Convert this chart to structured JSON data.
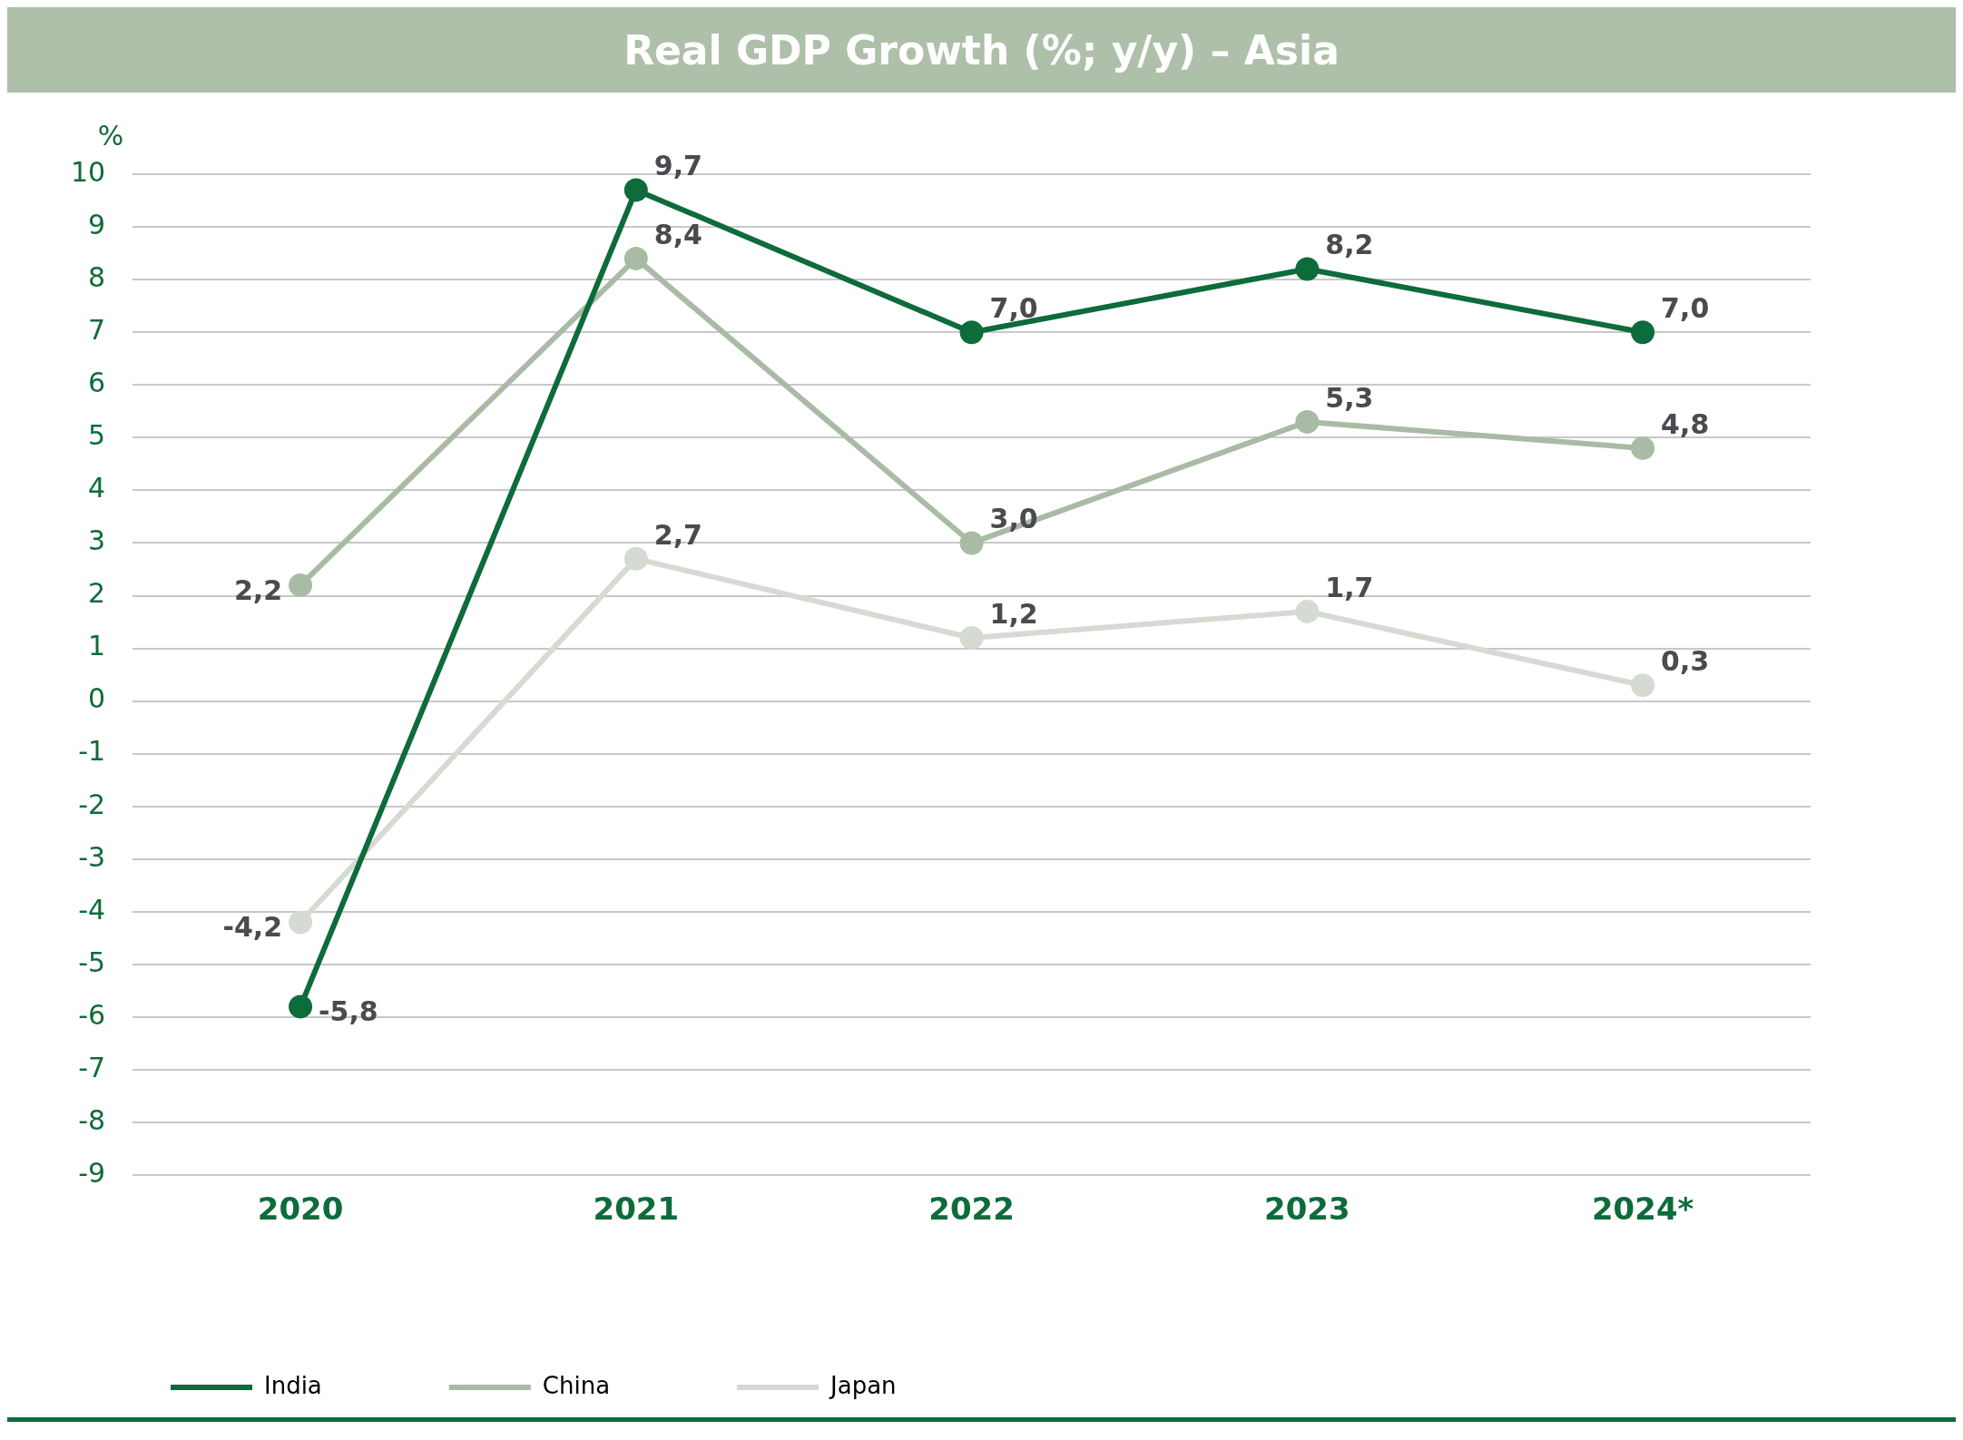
{
  "chart_data": {
    "type": "line",
    "title": "Real GDP Growth (%; y/y) – Asia",
    "ylabel": "%",
    "categories": [
      "2020",
      "2021",
      "2022",
      "2023",
      "2024*"
    ],
    "series": [
      {
        "name": "India",
        "color": "#0e6b3a",
        "values": [
          -5.8,
          9.7,
          7.0,
          8.2,
          7.0
        ],
        "value_labels": [
          "-5,8",
          "9,7",
          "7,0",
          "8,2",
          "7,0"
        ]
      },
      {
        "name": "China",
        "color": "#a9bba5",
        "values": [
          2.2,
          8.4,
          3.0,
          5.3,
          4.8
        ],
        "value_labels": [
          "2,2",
          "8,4",
          "3,0",
          "5,3",
          "4,8"
        ]
      },
      {
        "name": "Japan",
        "color": "#d5dbd2",
        "values": [
          -4.2,
          2.7,
          1.2,
          1.7,
          0.3
        ],
        "value_labels": [
          "-4,2",
          "2,7",
          "1,2",
          "1,7",
          "0,3"
        ]
      }
    ],
    "ylim": [
      -9,
      10
    ],
    "yticks": [
      -9,
      -8,
      -7,
      -6,
      -5,
      -4,
      -3,
      -2,
      -1,
      0,
      1,
      2,
      3,
      4,
      5,
      6,
      7,
      8,
      9,
      10
    ],
    "grid": "y",
    "legend": "bottom left",
    "marker": "circle",
    "line_style": "solid"
  }
}
